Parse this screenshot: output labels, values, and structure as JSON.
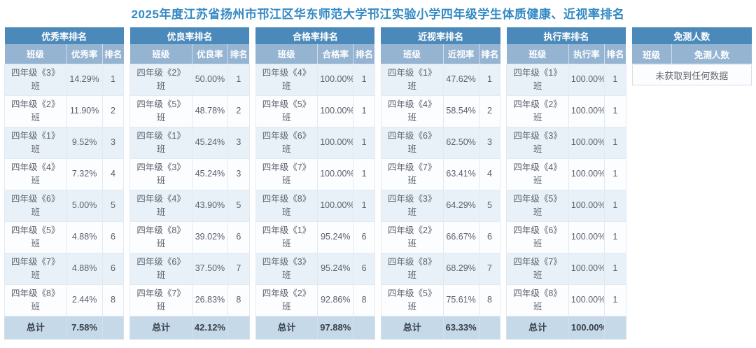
{
  "title": "2025年度江苏省扬州市邗江区华东师范大学邗江实验小学四年级学生体质健康、近视率排名",
  "colors": {
    "title_text": "#3389c4",
    "header_bg": "#4a89ba",
    "subheader_bg": "#94b4d2",
    "row_alt_bg": "#e9f1f8",
    "total_row_bg": "#c6d9e8"
  },
  "tables": [
    {
      "name": "excellent-rate-ranking",
      "title": "优秀率排名",
      "columns": [
        "班级",
        "优秀率",
        "排名"
      ],
      "rows": [
        [
          "四年级《3》班",
          "14.29%",
          "1"
        ],
        [
          "四年级《2》班",
          "11.90%",
          "2"
        ],
        [
          "四年级《1》班",
          "9.52%",
          "3"
        ],
        [
          "四年级《4》班",
          "7.32%",
          "4"
        ],
        [
          "四年级《6》班",
          "5.00%",
          "5"
        ],
        [
          "四年级《5》班",
          "4.88%",
          "6"
        ],
        [
          "四年级《7》班",
          "4.88%",
          "6"
        ],
        [
          "四年级《8》班",
          "2.44%",
          "8"
        ]
      ],
      "total": [
        "总计",
        "7.58%",
        ""
      ]
    },
    {
      "name": "good-rate-ranking",
      "title": "优良率排名",
      "columns": [
        "班级",
        "优良率",
        "排名"
      ],
      "rows": [
        [
          "四年级《2》班",
          "50.00%",
          "1"
        ],
        [
          "四年级《5》班",
          "48.78%",
          "2"
        ],
        [
          "四年级《1》班",
          "45.24%",
          "3"
        ],
        [
          "四年级《3》班",
          "45.24%",
          "3"
        ],
        [
          "四年级《4》班",
          "43.90%",
          "5"
        ],
        [
          "四年级《8》班",
          "39.02%",
          "6"
        ],
        [
          "四年级《6》班",
          "37.50%",
          "7"
        ],
        [
          "四年级《7》班",
          "26.83%",
          "8"
        ]
      ],
      "total": [
        "总计",
        "42.12%",
        ""
      ]
    },
    {
      "name": "pass-rate-ranking",
      "title": "合格率排名",
      "columns": [
        "班级",
        "合格率",
        "排名"
      ],
      "rows": [
        [
          "四年级《4》班",
          "100.00%",
          "1"
        ],
        [
          "四年级《5》班",
          "100.00%",
          "1"
        ],
        [
          "四年级《6》班",
          "100.00%",
          "1"
        ],
        [
          "四年级《7》班",
          "100.00%",
          "1"
        ],
        [
          "四年级《8》班",
          "100.00%",
          "1"
        ],
        [
          "四年级《1》班",
          "95.24%",
          "6"
        ],
        [
          "四年级《3》班",
          "95.24%",
          "6"
        ],
        [
          "四年级《2》班",
          "92.86%",
          "8"
        ]
      ],
      "total": [
        "总计",
        "97.88%",
        ""
      ]
    },
    {
      "name": "myopia-rate-ranking",
      "title": "近视率排名",
      "columns": [
        "班级",
        "近视率",
        "排名"
      ],
      "rows": [
        [
          "四年级《1》班",
          "47.62%",
          "1"
        ],
        [
          "四年级《4》班",
          "58.54%",
          "2"
        ],
        [
          "四年级《6》班",
          "62.50%",
          "3"
        ],
        [
          "四年级《7》班",
          "63.41%",
          "4"
        ],
        [
          "四年级《3》班",
          "64.29%",
          "5"
        ],
        [
          "四年级《2》班",
          "66.67%",
          "6"
        ],
        [
          "四年级《8》班",
          "68.29%",
          "7"
        ],
        [
          "四年级《5》班",
          "75.61%",
          "8"
        ]
      ],
      "total": [
        "总计",
        "63.33%",
        ""
      ]
    },
    {
      "name": "execution-rate-ranking",
      "title": "执行率排名",
      "columns": [
        "班级",
        "执行率",
        "排名"
      ],
      "rows": [
        [
          "四年级《1》班",
          "100.00%",
          "1"
        ],
        [
          "四年级《2》班",
          "100.00%",
          "1"
        ],
        [
          "四年级《3》班",
          "100.00%",
          "1"
        ],
        [
          "四年级《4》班",
          "100.00%",
          "1"
        ],
        [
          "四年级《5》班",
          "100.00%",
          "1"
        ],
        [
          "四年级《6》班",
          "100.00%",
          "1"
        ],
        [
          "四年级《7》班",
          "100.00%",
          "1"
        ],
        [
          "四年级《8》班",
          "100.00%",
          "1"
        ]
      ],
      "total": [
        "总计",
        "100.00%",
        ""
      ]
    },
    {
      "name": "exempted-count",
      "title": "免测人数",
      "columns": [
        "班级",
        "免测人数"
      ],
      "rows": [],
      "no_data_message": "未获取到任何数据"
    }
  ]
}
